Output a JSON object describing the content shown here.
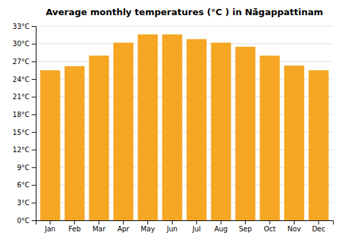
{
  "chart_data": {
    "type": "bar",
    "title": "Average monthly temperatures (°C ) in Nā̇gappattinam",
    "categories": [
      "Jan",
      "Feb",
      "Mar",
      "Apr",
      "May",
      "Jun",
      "Jul",
      "Aug",
      "Sep",
      "Oct",
      "Nov",
      "Dec"
    ],
    "values": [
      25.5,
      26.2,
      28.0,
      30.2,
      31.6,
      31.6,
      30.8,
      30.2,
      29.5,
      28.0,
      26.3,
      25.5
    ],
    "color": "#F5A623",
    "ylim": [
      0,
      33
    ],
    "yticks": [
      {
        "value": 0,
        "label": "0°C"
      },
      {
        "value": 3,
        "label": "3°C"
      },
      {
        "value": 6,
        "label": "6°C"
      },
      {
        "value": 9,
        "label": "9°C"
      },
      {
        "value": 12,
        "label": "12°C"
      },
      {
        "value": 15,
        "label": "15°C"
      },
      {
        "value": 18,
        "label": "18°C"
      },
      {
        "value": 21,
        "label": "21°C"
      },
      {
        "value": 24,
        "label": "24°C"
      },
      {
        "value": 27,
        "label": "27°C"
      },
      {
        "value": 30,
        "label": "30°C"
      },
      {
        "value": 33,
        "label": "33°C"
      }
    ],
    "grid": true
  }
}
